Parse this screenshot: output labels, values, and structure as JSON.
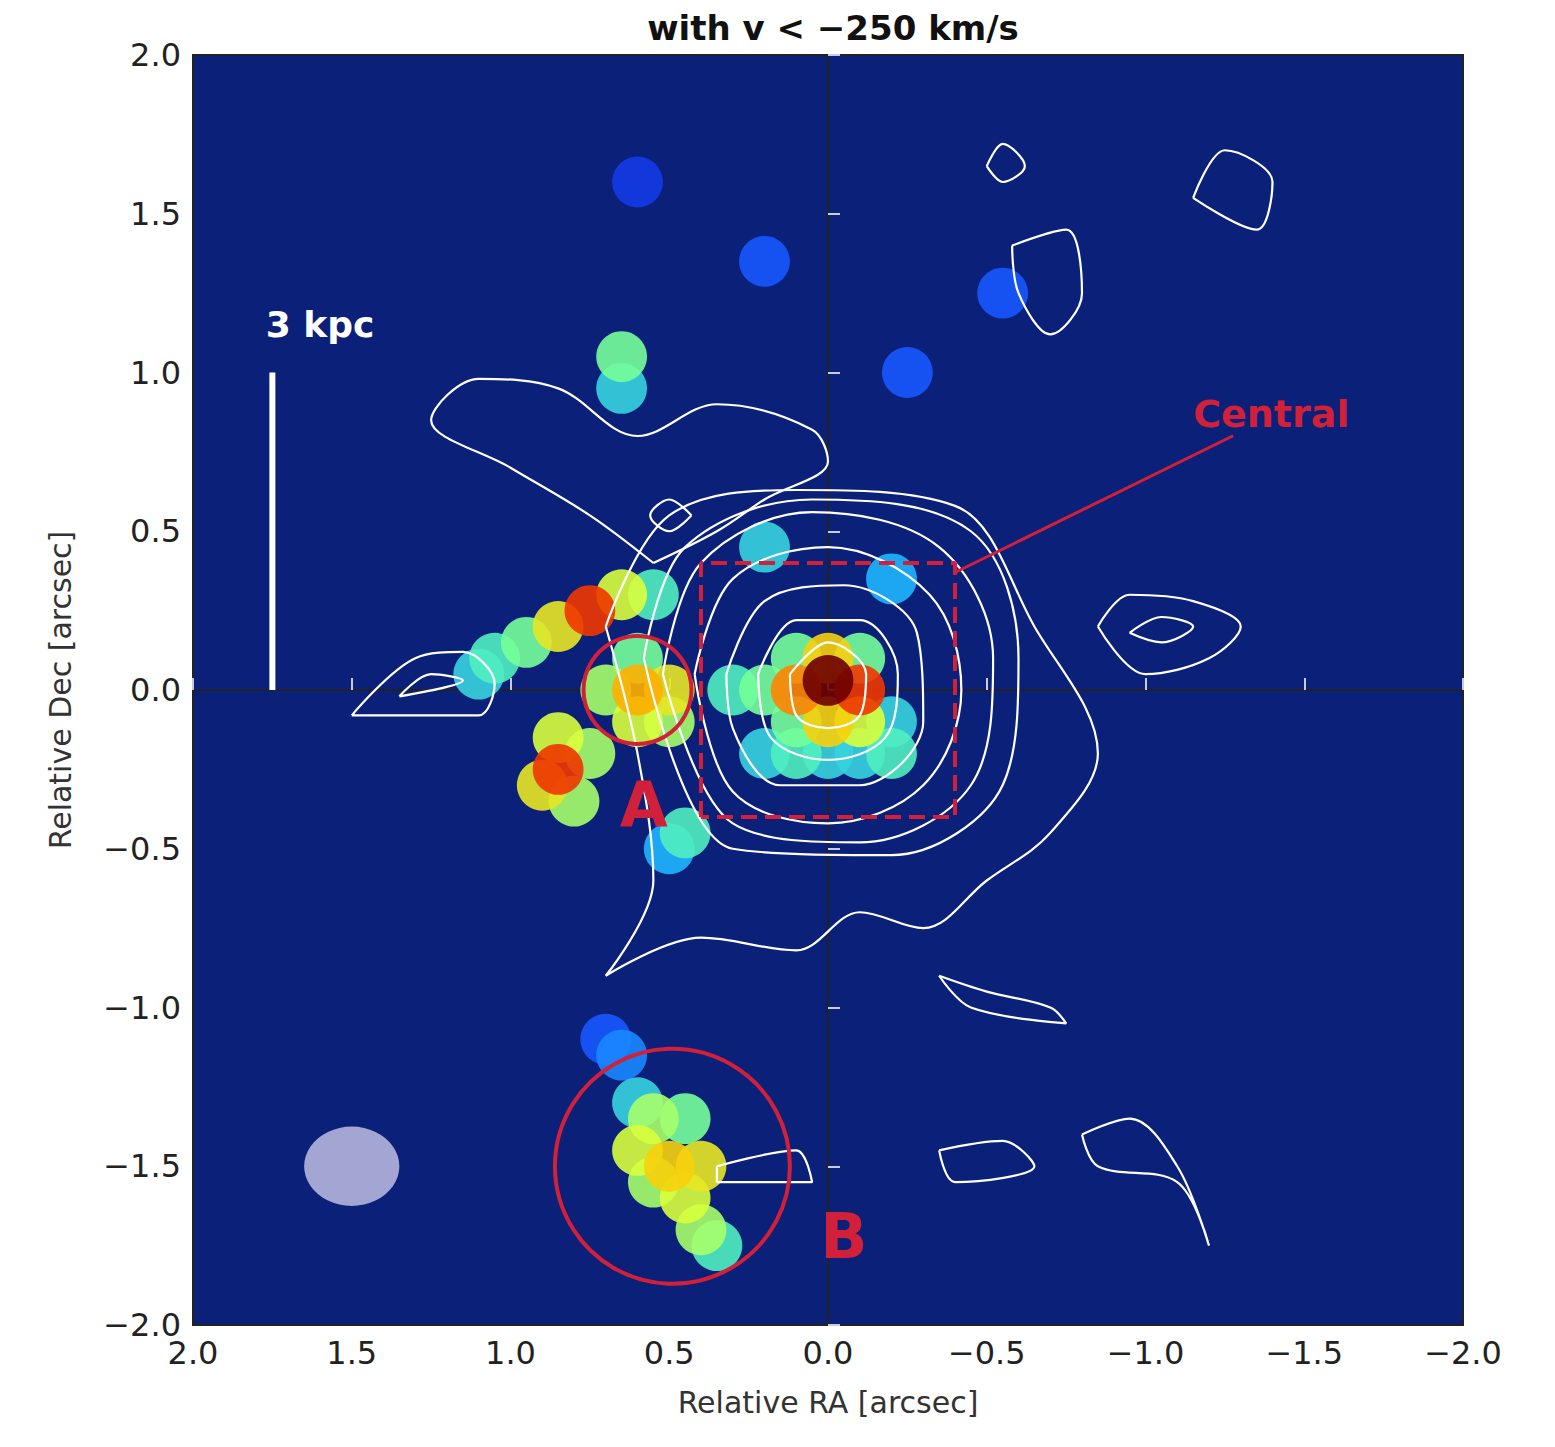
{
  "chart_data": {
    "type": "heatmap",
    "title": "with v < −250 km/s",
    "x_label": "Relative RA [arcsec]",
    "y_label": "Relative Dec [arcsec]",
    "xlim": [
      2,
      -2
    ],
    "ylim": [
      -2,
      2
    ],
    "xticks": [
      {
        "value": 2,
        "label": "2.0"
      },
      {
        "value": 1.5,
        "label": "1.5"
      },
      {
        "value": 1,
        "label": "1.0"
      },
      {
        "value": 0.5,
        "label": "0.5"
      },
      {
        "value": 0,
        "label": "0.0"
      },
      {
        "value": -0.5,
        "label": "−0.5"
      },
      {
        "value": -1,
        "label": "−1.0"
      },
      {
        "value": -1.5,
        "label": "−1.5"
      },
      {
        "value": -2,
        "label": "−2.0"
      }
    ],
    "yticks": [
      {
        "value": -2,
        "label": "−2.0"
      },
      {
        "value": -1.5,
        "label": "−1.5"
      },
      {
        "value": -1,
        "label": "−1.0"
      },
      {
        "value": -0.5,
        "label": "−0.5"
      },
      {
        "value": 0,
        "label": "0.0"
      },
      {
        "value": 0.5,
        "label": "0.5"
      },
      {
        "value": 1,
        "label": "1.0"
      },
      {
        "value": 1.5,
        "label": "1.5"
      },
      {
        "value": 2,
        "label": "2.0"
      }
    ],
    "clim": [
      0,
      1
    ],
    "cell_size": 0.1,
    "cells": [
      [
        0.6,
        1.6,
        0.1
      ],
      [
        0.2,
        1.35,
        0.15
      ],
      [
        -0.25,
        1.0,
        0.15
      ],
      [
        -0.55,
        1.25,
        0.15
      ],
      [
        0.65,
        0.95,
        0.3
      ],
      [
        0.65,
        1.05,
        0.4
      ],
      [
        0.2,
        0.45,
        0.3
      ],
      [
        -0.2,
        0.35,
        0.25
      ],
      [
        0.5,
        -0.5,
        0.25
      ],
      [
        0.45,
        -0.45,
        0.35
      ],
      [
        0.55,
        0.3,
        0.35
      ],
      [
        0.65,
        0.3,
        0.5
      ],
      [
        1.1,
        0.05,
        0.3
      ],
      [
        1.05,
        0.1,
        0.35
      ],
      [
        0.95,
        0.15,
        0.4
      ],
      [
        0.85,
        0.2,
        0.55
      ],
      [
        0.75,
        0.25,
        0.8
      ],
      [
        0.75,
        -0.2,
        0.45
      ],
      [
        0.8,
        -0.35,
        0.45
      ],
      [
        0.85,
        -0.15,
        0.5
      ],
      [
        0.9,
        -0.3,
        0.55
      ],
      [
        0.85,
        -0.25,
        0.8
      ],
      [
        0.6,
        0.1,
        0.4
      ],
      [
        0.7,
        0.0,
        0.45
      ],
      [
        0.5,
        -0.1,
        0.45
      ],
      [
        0.6,
        -0.1,
        0.5
      ],
      [
        0.5,
        0.0,
        0.55
      ],
      [
        0.6,
        0.0,
        0.65
      ],
      [
        0.7,
        -1.1,
        0.15
      ],
      [
        0.65,
        -1.15,
        0.2
      ],
      [
        0.6,
        -1.3,
        0.3
      ],
      [
        0.35,
        -1.75,
        0.35
      ],
      [
        0.45,
        -1.35,
        0.4
      ],
      [
        0.4,
        -1.7,
        0.45
      ],
      [
        0.55,
        -1.35,
        0.45
      ],
      [
        0.55,
        -1.55,
        0.45
      ],
      [
        0.6,
        -1.45,
        0.5
      ],
      [
        0.45,
        -1.6,
        0.5
      ],
      [
        0.4,
        -1.5,
        0.55
      ],
      [
        0.5,
        -1.5,
        0.6
      ],
      [
        0.2,
        -0.2,
        0.3
      ],
      [
        0.0,
        -0.2,
        0.3
      ],
      [
        -0.1,
        -0.2,
        0.3
      ],
      [
        -0.2,
        -0.1,
        0.3
      ],
      [
        -0.2,
        -0.2,
        0.35
      ],
      [
        0.1,
        -0.2,
        0.35
      ],
      [
        0.3,
        0.0,
        0.35
      ],
      [
        0.2,
        0.0,
        0.4
      ],
      [
        0.1,
        -0.1,
        0.4
      ],
      [
        -0.1,
        0.1,
        0.4
      ],
      [
        0.1,
        0.1,
        0.4
      ],
      [
        -0.1,
        -0.1,
        0.5
      ],
      [
        0.0,
        0.1,
        0.6
      ],
      [
        0.0,
        -0.1,
        0.6
      ],
      [
        0.1,
        0.0,
        0.7
      ],
      [
        -0.1,
        0.0,
        0.8
      ],
      [
        0.0,
        0.03,
        1.0
      ]
    ],
    "contours": [
      [
        [
          0.12,
          0.05
        ],
        [
          0.0,
          0.15
        ],
        [
          -0.12,
          0.05
        ],
        [
          -0.1,
          -0.08
        ],
        [
          0.0,
          -0.12
        ],
        [
          0.1,
          -0.08
        ],
        [
          0.12,
          0.05
        ]
      ],
      [
        [
          0.22,
          0.05
        ],
        [
          0.1,
          0.22
        ],
        [
          -0.1,
          0.22
        ],
        [
          -0.22,
          0.05
        ],
        [
          -0.18,
          -0.15
        ],
        [
          0.0,
          -0.22
        ],
        [
          0.18,
          -0.15
        ],
        [
          0.22,
          0.05
        ]
      ],
      [
        [
          0.32,
          0.05
        ],
        [
          0.2,
          0.28
        ],
        [
          -0.05,
          0.33
        ],
        [
          -0.28,
          0.18
        ],
        [
          -0.3,
          -0.1
        ],
        [
          -0.1,
          -0.3
        ],
        [
          0.15,
          -0.3
        ],
        [
          0.3,
          -0.12
        ],
        [
          0.32,
          0.05
        ]
      ],
      [
        [
          0.42,
          0.05
        ],
        [
          0.3,
          0.35
        ],
        [
          0.0,
          0.45
        ],
        [
          -0.32,
          0.3
        ],
        [
          -0.42,
          0.0
        ],
        [
          -0.3,
          -0.3
        ],
        [
          0.0,
          -0.42
        ],
        [
          0.3,
          -0.32
        ],
        [
          0.42,
          0.05
        ]
      ],
      [
        [
          0.52,
          0.05
        ],
        [
          0.4,
          0.4
        ],
        [
          0.05,
          0.56
        ],
        [
          -0.35,
          0.45
        ],
        [
          -0.52,
          0.1
        ],
        [
          -0.45,
          -0.3
        ],
        [
          -0.1,
          -0.48
        ],
        [
          0.3,
          -0.42
        ],
        [
          0.52,
          0.05
        ]
      ],
      [
        [
          0.58,
          0.1
        ],
        [
          0.45,
          0.45
        ],
        [
          0.05,
          0.6
        ],
        [
          -0.45,
          0.5
        ],
        [
          -0.6,
          0.1
        ],
        [
          -0.55,
          -0.3
        ],
        [
          -0.2,
          -0.52
        ],
        [
          0.3,
          -0.5
        ],
        [
          0.58,
          0.1
        ]
      ],
      [
        [
          0.7,
          0.2
        ],
        [
          0.5,
          0.55
        ],
        [
          0.1,
          0.63
        ],
        [
          -0.4,
          0.58
        ],
        [
          -0.65,
          0.2
        ],
        [
          -0.85,
          -0.2
        ],
        [
          -0.7,
          -0.45
        ],
        [
          -0.5,
          -0.6
        ],
        [
          -0.3,
          -0.75
        ],
        [
          -0.1,
          -0.7
        ],
        [
          0.1,
          -0.82
        ],
        [
          0.4,
          -0.78
        ],
        [
          0.7,
          -0.9
        ],
        [
          0.55,
          -0.6
        ],
        [
          0.6,
          -0.2
        ],
        [
          0.7,
          0.2
        ]
      ],
      [
        [
          0.55,
          0.4
        ],
        [
          0.75,
          0.55
        ],
        [
          1.0,
          0.7
        ],
        [
          1.25,
          0.85
        ],
        [
          1.1,
          0.98
        ],
        [
          0.85,
          0.95
        ],
        [
          0.6,
          0.8
        ],
        [
          0.35,
          0.9
        ],
        [
          0.05,
          0.82
        ],
        [
          0.0,
          0.72
        ],
        [
          0.2,
          0.6
        ],
        [
          0.35,
          0.5
        ],
        [
          0.55,
          0.4
        ]
      ],
      [
        [
          0.43,
          0.55
        ],
        [
          0.5,
          0.6
        ],
        [
          0.56,
          0.55
        ],
        [
          0.5,
          0.5
        ],
        [
          0.43,
          0.55
        ]
      ],
      [
        [
          1.5,
          -0.08
        ],
        [
          1.3,
          0.1
        ],
        [
          1.15,
          0.12
        ],
        [
          1.05,
          0.02
        ],
        [
          1.1,
          -0.08
        ],
        [
          1.3,
          -0.08
        ],
        [
          1.5,
          -0.08
        ]
      ],
      [
        [
          1.35,
          -0.02
        ],
        [
          1.25,
          0.05
        ],
        [
          1.15,
          0.03
        ],
        [
          1.35,
          -0.02
        ]
      ],
      [
        [
          -0.85,
          0.2
        ],
        [
          -0.95,
          0.3
        ],
        [
          -1.15,
          0.28
        ],
        [
          -1.3,
          0.2
        ],
        [
          -1.2,
          0.1
        ],
        [
          -1.0,
          0.05
        ],
        [
          -0.85,
          0.2
        ]
      ],
      [
        [
          -0.95,
          0.18
        ],
        [
          -1.05,
          0.23
        ],
        [
          -1.15,
          0.2
        ],
        [
          -1.05,
          0.15
        ],
        [
          -0.95,
          0.18
        ]
      ],
      [
        [
          -1.15,
          1.55
        ],
        [
          -1.25,
          1.7
        ],
        [
          -1.4,
          1.6
        ],
        [
          -1.35,
          1.45
        ],
        [
          -1.15,
          1.55
        ]
      ],
      [
        [
          -0.58,
          1.4
        ],
        [
          -0.75,
          1.45
        ],
        [
          -0.8,
          1.25
        ],
        [
          -0.7,
          1.12
        ],
        [
          -0.6,
          1.25
        ],
        [
          -0.58,
          1.4
        ]
      ],
      [
        [
          -0.5,
          1.65
        ],
        [
          -0.55,
          1.72
        ],
        [
          -0.62,
          1.65
        ],
        [
          -0.55,
          1.6
        ],
        [
          -0.5,
          1.65
        ]
      ],
      [
        [
          0.35,
          -1.5
        ],
        [
          0.1,
          -1.45
        ],
        [
          0.05,
          -1.55
        ],
        [
          0.35,
          -1.55
        ],
        [
          0.35,
          -1.5
        ]
      ],
      [
        [
          -0.35,
          -0.9
        ],
        [
          -0.45,
          -1.0
        ],
        [
          -0.75,
          -1.05
        ],
        [
          -0.7,
          -1.0
        ],
        [
          -0.5,
          -0.95
        ],
        [
          -0.35,
          -0.9
        ]
      ],
      [
        [
          -0.35,
          -1.45
        ],
        [
          -0.55,
          -1.42
        ],
        [
          -0.65,
          -1.5
        ],
        [
          -0.4,
          -1.55
        ],
        [
          -0.35,
          -1.45
        ]
      ],
      [
        [
          -0.8,
          -1.4
        ],
        [
          -0.95,
          -1.35
        ],
        [
          -1.1,
          -1.5
        ],
        [
          -1.2,
          -1.75
        ],
        [
          -1.1,
          -1.55
        ],
        [
          -0.85,
          -1.5
        ],
        [
          -0.8,
          -1.4
        ]
      ]
    ],
    "box": {
      "label": "Central",
      "x": [
        0.4,
        -0.4
      ],
      "y": [
        -0.4,
        0.4
      ],
      "label_at": [
        -1.15,
        0.87
      ],
      "pointer_to": [
        -0.4,
        0.37
      ]
    },
    "circles": [
      {
        "label": "A",
        "x": 0.6,
        "y": 0.0,
        "r": 0.17,
        "label_at": [
          0.58,
          -0.36
        ]
      },
      {
        "label": "B",
        "x": 0.49,
        "y": -1.5,
        "r": 0.37,
        "label_at": [
          -0.05,
          -1.72
        ]
      }
    ],
    "scale_bar": {
      "label": "3 kpc",
      "x": 1.75,
      "y": [
        0.0,
        1.0
      ],
      "label_at": [
        1.6,
        1.15
      ]
    },
    "beam": {
      "x": 1.5,
      "y": -1.5,
      "width": 0.3,
      "height": 0.25
    }
  }
}
